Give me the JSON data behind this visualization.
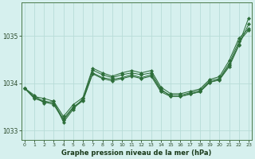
{
  "xlabel": "Graphe pression niveau de la mer (hPa)",
  "background_color": "#d6f0ee",
  "grid_color": "#b8dcd8",
  "line_color": "#2d6e3a",
  "x_ticks": [
    0,
    1,
    2,
    3,
    4,
    5,
    6,
    7,
    8,
    9,
    10,
    11,
    12,
    13,
    14,
    15,
    16,
    17,
    18,
    19,
    20,
    21,
    22,
    23
  ],
  "ylim": [
    1032.8,
    1035.7
  ],
  "yticks": [
    1033,
    1034,
    1035
  ],
  "series": [
    [
      1033.9,
      1033.72,
      1033.68,
      1033.62,
      1033.18,
      1033.45,
      1033.68,
      1034.28,
      1034.18,
      1034.12,
      1034.18,
      1034.22,
      1034.18,
      1034.22,
      1033.88,
      1033.72,
      1033.72,
      1033.78,
      1033.82,
      1034.02,
      1034.08,
      1034.38,
      1034.82,
      1035.38
    ],
    [
      1033.9,
      1033.7,
      1033.63,
      1033.58,
      1033.25,
      1033.5,
      1033.65,
      1034.22,
      1034.12,
      1034.08,
      1034.12,
      1034.18,
      1034.12,
      1034.18,
      1033.85,
      1033.75,
      1033.75,
      1033.8,
      1033.85,
      1034.05,
      1034.1,
      1034.42,
      1034.88,
      1035.12
    ],
    [
      1033.9,
      1033.68,
      1033.61,
      1033.55,
      1033.22,
      1033.48,
      1033.63,
      1034.2,
      1034.1,
      1034.05,
      1034.1,
      1034.15,
      1034.1,
      1034.15,
      1033.82,
      1033.72,
      1033.72,
      1033.77,
      1033.82,
      1034.02,
      1034.07,
      1034.35,
      1034.8,
      1035.25
    ],
    [
      1033.9,
      1033.75,
      1033.58,
      1033.62,
      1033.3,
      1033.55,
      1033.7,
      1034.32,
      1034.22,
      1034.15,
      1034.22,
      1034.27,
      1034.22,
      1034.27,
      1033.92,
      1033.78,
      1033.78,
      1033.83,
      1033.88,
      1034.08,
      1034.14,
      1034.48,
      1034.95,
      1035.15
    ]
  ]
}
